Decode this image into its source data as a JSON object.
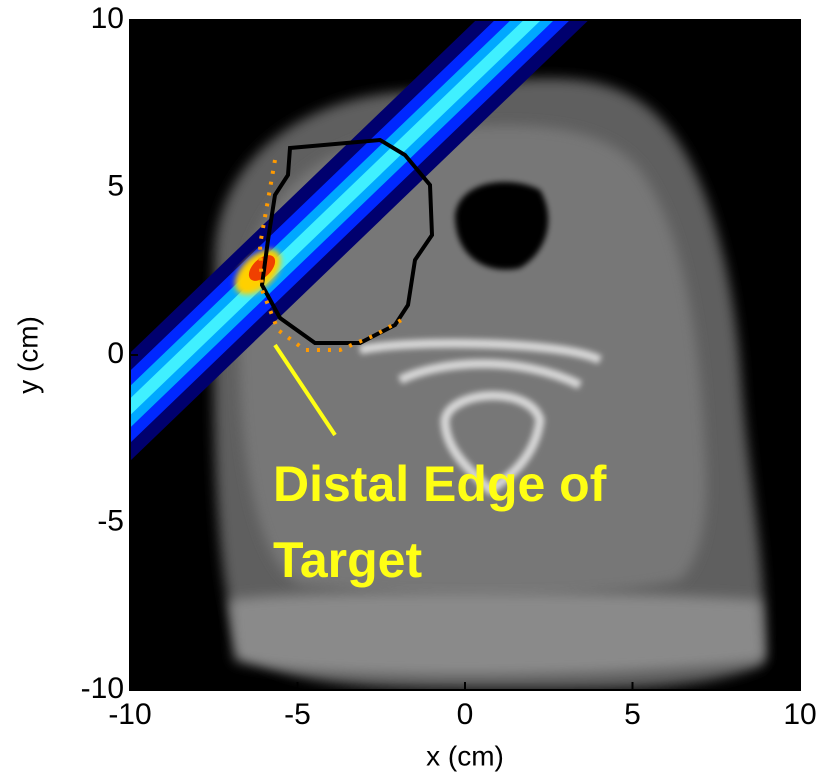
{
  "chart_data": {
    "type": "image",
    "xlabel": "x (cm)",
    "ylabel": "y (cm)",
    "xlim": [
      -10,
      10
    ],
    "ylim": [
      -10,
      10
    ],
    "xticks": [
      -10,
      -5,
      0,
      5,
      10
    ],
    "yticks": [
      -10,
      -5,
      0,
      5,
      10
    ],
    "annotation": [
      "Distal Edge of",
      "Target"
    ]
  }
}
